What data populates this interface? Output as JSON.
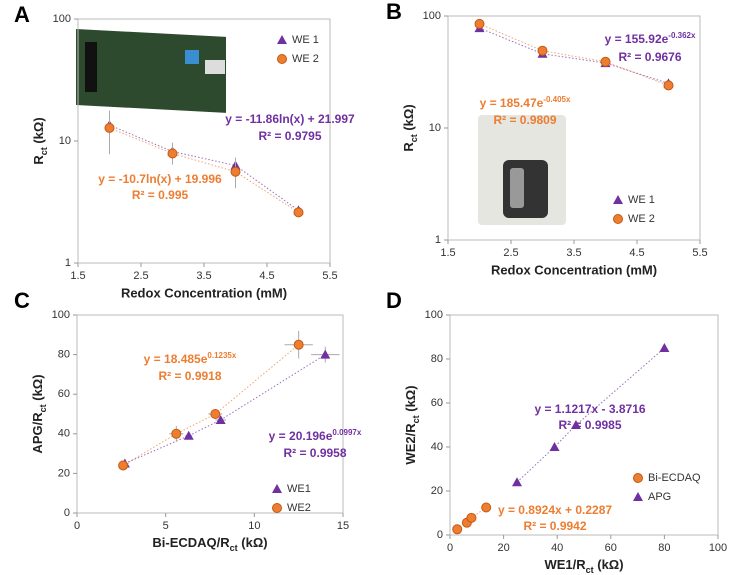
{
  "chart_data": [
    {
      "type": "scatter",
      "panel": "A",
      "ylog": true,
      "xlabel": "Redox Concentration (mM)",
      "ylabel": {
        "base": "R",
        "sub": "ct",
        "tail": " (kΩ)"
      },
      "xlim": [
        1.5,
        5.5
      ],
      "xticks": [
        1.5,
        2.5,
        3.5,
        4.5,
        5.5
      ],
      "ylim": [
        1,
        100
      ],
      "yticks": [
        1,
        10,
        100
      ],
      "legend": "upper right",
      "series": [
        {
          "name": "WE 1",
          "color": "#7030a0",
          "marker": "triangle",
          "x": [
            2,
            3,
            4,
            5
          ],
          "values": [
            13.5,
            8.2,
            6.3,
            2.7
          ],
          "errors": [
            3,
            1.5,
            1,
            0.2
          ]
        },
        {
          "name": "WE 2",
          "color": "#ed7d31",
          "marker": "circle",
          "x": [
            2,
            3,
            4,
            5
          ],
          "values": [
            12.8,
            7.9,
            5.6,
            2.6
          ],
          "errors": [
            5,
            1.5,
            1.5,
            0.2
          ]
        }
      ],
      "annotations": [
        {
          "base": "y = -11.86ln(x) + 21.997",
          "color": "#7030a0"
        },
        {
          "base": "R² = 0.9795",
          "color": "#7030a0"
        },
        {
          "base": "y = -10.7ln(x) + 19.996",
          "color": "#ed7d31"
        },
        {
          "base": "R² = 0.995",
          "color": "#ed7d31"
        }
      ]
    },
    {
      "type": "scatter",
      "panel": "B",
      "ylog": true,
      "xlabel": "Redox Concentration (mM)",
      "ylabel": {
        "base": "R",
        "sub": "ct",
        "tail": " (kΩ)"
      },
      "xlim": [
        1.5,
        5.5
      ],
      "xticks": [
        1.5,
        2.5,
        3.5,
        4.5,
        5.5
      ],
      "ylim": [
        1,
        100
      ],
      "yticks": [
        1,
        10,
        100
      ],
      "legend": "lower right",
      "series": [
        {
          "name": "WE 1",
          "color": "#7030a0",
          "marker": "triangle",
          "x": [
            2,
            3,
            4,
            5
          ],
          "values": [
            78,
            46,
            38,
            25
          ]
        },
        {
          "name": "WE 2",
          "color": "#ed7d31",
          "marker": "circle",
          "x": [
            2,
            3,
            4,
            5
          ],
          "values": [
            85,
            49,
            39,
            24
          ]
        }
      ],
      "annotations": [
        {
          "base": "y = 155.92e",
          "sup": "-0.362x",
          "color": "#7030a0"
        },
        {
          "base": "R² = 0.9676",
          "color": "#7030a0"
        },
        {
          "base": "y = 185.47e",
          "sup": "-0.405x",
          "color": "#ed7d31"
        },
        {
          "base": "R² = 0.9809",
          "color": "#ed7d31"
        }
      ]
    },
    {
      "type": "scatter",
      "panel": "C",
      "ylog": false,
      "xlabel": {
        "base": "Bi-ECDAQ/R",
        "sub": "ct",
        "tail": " (kΩ)"
      },
      "ylabel": {
        "base": "APG/R",
        "sub": "ct",
        "tail": " (kΩ)"
      },
      "xlim": [
        0,
        15
      ],
      "xticks": [
        0,
        5,
        10,
        15
      ],
      "ylim": [
        0,
        100
      ],
      "yticks": [
        0,
        20,
        40,
        60,
        80,
        100
      ],
      "legend": "lower right",
      "series": [
        {
          "name": "WE1",
          "color": "#7030a0",
          "marker": "triangle",
          "x": [
            2.7,
            6.3,
            8.1,
            14
          ],
          "values": [
            25,
            39,
            47,
            80
          ],
          "errors": [
            2,
            1,
            2,
            4
          ],
          "xerrors": [
            0.2,
            0.2,
            0.3,
            0.8
          ]
        },
        {
          "name": "WE2",
          "color": "#ed7d31",
          "marker": "circle",
          "x": [
            2.6,
            5.6,
            7.8,
            12.5
          ],
          "values": [
            24,
            40,
            50,
            85
          ],
          "errors": [
            2,
            4,
            2,
            7
          ],
          "xerrors": [
            0.2,
            0.4,
            0.4,
            0.8
          ]
        }
      ],
      "annotations": [
        {
          "base": "y = 18.485e",
          "sup": "0.1235x",
          "color": "#ed7d31"
        },
        {
          "base": "R² = 0.9918",
          "color": "#ed7d31"
        },
        {
          "base": "y = 20.196e",
          "sup": "0.0997x",
          "color": "#7030a0"
        },
        {
          "base": "R² = 0.9958",
          "color": "#7030a0"
        }
      ]
    },
    {
      "type": "scatter",
      "panel": "D",
      "ylog": false,
      "xlabel": {
        "base": "WE1/R",
        "sub": "ct",
        "tail": " (kΩ)"
      },
      "ylabel": {
        "base": "WE2/R",
        "sub": "ct",
        "tail": " (kΩ)"
      },
      "xlim": [
        0,
        100
      ],
      "xticks": [
        0,
        20,
        40,
        60,
        80,
        100
      ],
      "ylim": [
        0,
        100
      ],
      "yticks": [
        0,
        20,
        40,
        60,
        80,
        100
      ],
      "legend": "lower right",
      "series": [
        {
          "name": "Bi-ECDAQ",
          "color": "#ed7d31",
          "marker": "circle",
          "x": [
            2.7,
            6.3,
            8,
            13.5
          ],
          "values": [
            2.6,
            5.6,
            7.8,
            12.5
          ]
        },
        {
          "name": "APG",
          "color": "#7030a0",
          "marker": "triangle",
          "x": [
            25,
            39,
            47,
            80
          ],
          "values": [
            24,
            40,
            50,
            85
          ]
        }
      ],
      "annotations": [
        {
          "base": "y = 1.1217x - 3.8716",
          "color": "#7030a0"
        },
        {
          "base": "R² = 0.9985",
          "color": "#7030a0"
        },
        {
          "base": "y = 0.8924x + 0.2287",
          "color": "#ed7d31"
        },
        {
          "base": "R² = 0.9942",
          "color": "#ed7d31"
        }
      ]
    }
  ]
}
